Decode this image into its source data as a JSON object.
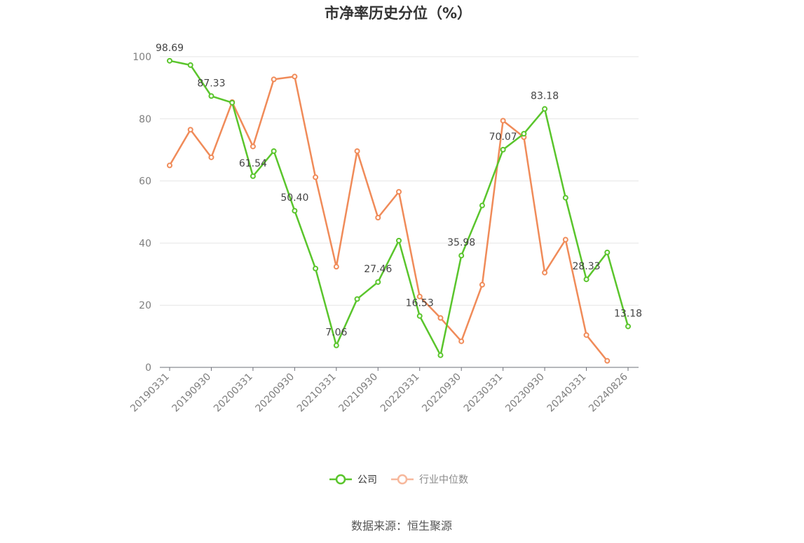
{
  "chart_data": {
    "type": "line",
    "title": "市净率历史分位（%）",
    "ylim": [
      0,
      100
    ],
    "yticks": [
      0,
      20,
      40,
      60,
      80,
      100
    ],
    "x": [
      "20190331",
      "20190630",
      "20190930",
      "20191231",
      "20200331",
      "20200630",
      "20200930",
      "20201231",
      "20210331",
      "20210630",
      "20210930",
      "20211231",
      "20220331",
      "20220630",
      "20220930",
      "20221231",
      "20230331",
      "20230630",
      "20230930",
      "20231231",
      "20240331",
      "20240630",
      "20240826"
    ],
    "x_tick_labels": [
      "20190331",
      "20190930",
      "20200331",
      "20200930",
      "20210331",
      "20210930",
      "20220331",
      "20220930",
      "20230331",
      "20230930",
      "20240331",
      "20240826"
    ],
    "series": [
      {
        "name": "公司",
        "color": "#5ac52c",
        "values": [
          98.69,
          97.3,
          87.33,
          85.2,
          61.54,
          69.6,
          50.4,
          31.8,
          7.06,
          22.0,
          27.46,
          40.8,
          16.53,
          3.9,
          35.98,
          52.1,
          70.07,
          75.2,
          83.18,
          54.6,
          28.33,
          37.0,
          13.18
        ],
        "labels": {
          "0": "98.69",
          "2": "87.33",
          "4": "61.54",
          "6": "50.40",
          "8": "7.06",
          "10": "27.46",
          "12": "16.53",
          "14": "35.98",
          "16": "70.07",
          "18": "83.18",
          "20": "28.33",
          "22": "13.18"
        }
      },
      {
        "name": "行业中位数",
        "color": "#f08b59",
        "values": [
          65.0,
          76.5,
          67.6,
          85.4,
          71.1,
          92.7,
          93.6,
          61.2,
          32.4,
          69.6,
          48.2,
          56.5,
          22.8,
          15.9,
          8.4,
          26.6,
          79.4,
          74.1,
          30.5,
          41.1,
          10.4,
          2.1,
          null
        ]
      }
    ],
    "legend": {
      "position": "bottom",
      "entries": [
        "公司",
        "行业中位数"
      ]
    },
    "grid": true
  },
  "source_text": "数据来源：恒生聚源"
}
